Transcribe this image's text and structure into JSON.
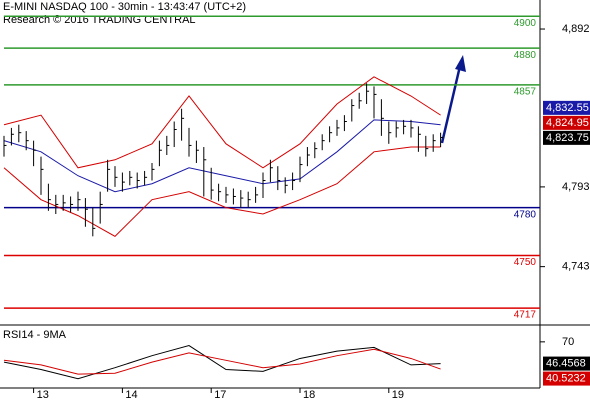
{
  "chart_data": [
    {
      "type": "hlc",
      "title": "E-MINI NASDAQ 100 - 30min - 13:43:47 (UTC+2)",
      "subtitle": "Research © 2016 TRADING CENTRAL",
      "categories": [
        null,
        null,
        null,
        null,
        "13",
        null,
        null,
        null,
        null,
        null,
        null,
        null,
        null,
        null,
        null,
        null,
        "14",
        null,
        null,
        null,
        null,
        null,
        null,
        null,
        null,
        null,
        null,
        null,
        "17",
        null,
        null,
        null,
        null,
        null,
        null,
        null,
        null,
        null,
        null,
        null,
        "18",
        null,
        null,
        null,
        null,
        null,
        null,
        null,
        null,
        null,
        null,
        null,
        "19",
        null,
        null,
        null,
        null,
        null,
        null,
        null
      ],
      "high": [
        4825,
        4830,
        4832,
        4828,
        4822,
        4812,
        4795,
        4788,
        4788,
        4787,
        4790,
        4786,
        4780,
        4790,
        4810,
        4806,
        4802,
        4803,
        4802,
        4803,
        4808,
        4822,
        4825,
        4834,
        4842,
        4830,
        4822,
        4818,
        4805,
        4795,
        4793,
        4792,
        4791,
        4790,
        4793,
        4802,
        4810,
        4806,
        4799,
        4802,
        4812,
        4818,
        4821,
        4826,
        4831,
        4835,
        4838,
        4848,
        4852,
        4858,
        4856,
        4848,
        4834,
        4834,
        4835,
        4835,
        4831,
        4825,
        4826,
        4827
      ],
      "low": [
        4812,
        4819,
        4821,
        4816,
        4806,
        4788,
        4778,
        4776,
        4778,
        4777,
        4778,
        4768,
        4762,
        4770,
        4790,
        4793,
        4790,
        4794,
        4792,
        4794,
        4797,
        4806,
        4813,
        4818,
        4822,
        4812,
        4808,
        4787,
        4785,
        4784,
        4783,
        4782,
        4780,
        4780,
        4783,
        4786,
        4796,
        4791,
        4789,
        4791,
        4796,
        4806,
        4811,
        4816,
        4821,
        4825,
        4828,
        4834,
        4842,
        4845,
        4836,
        4825,
        4820,
        4824,
        4826,
        4824,
        4815,
        4812,
        4815,
        4818
      ],
      "close": [
        4819,
        4826,
        4827,
        4822,
        4816,
        4804,
        4785,
        4782,
        4783,
        4782,
        4785,
        4779,
        4767,
        4782,
        4804,
        4799,
        4796,
        4799,
        4797,
        4799,
        4804,
        4816,
        4819,
        4829,
        4836,
        4819,
        4816,
        4810,
        4791,
        4790,
        4788,
        4787,
        4786,
        4785,
        4788,
        4797,
        4805,
        4797,
        4794,
        4797,
        4807,
        4813,
        4817,
        4822,
        4827,
        4830,
        4834,
        4844,
        4847,
        4853,
        4851,
        4836,
        4827,
        4830,
        4831,
        4830,
        4826,
        4817,
        4822,
        4824
      ],
      "series": [
        {
          "color": "#d40000",
          "x": [
            0,
            5,
            10,
            15,
            20,
            25,
            30,
            35,
            40,
            45,
            50,
            55,
            59
          ],
          "values": [
            4832,
            4838,
            4805,
            4810,
            4820,
            4850,
            4820,
            4805,
            4820,
            4845,
            4862,
            4850,
            4838
          ]
        },
        {
          "color": "#d40000",
          "x": [
            0,
            5,
            10,
            15,
            20,
            25,
            30,
            35,
            40,
            45,
            50,
            55,
            59
          ],
          "values": [
            4805,
            4785,
            4775,
            4762,
            4785,
            4790,
            4780,
            4776,
            4785,
            4795,
            4815,
            4818,
            4818
          ]
        },
        {
          "color": "#1a1aa8",
          "x": [
            0,
            5,
            10,
            15,
            20,
            25,
            30,
            35,
            40,
            45,
            50,
            55,
            59
          ],
          "values": [
            4822,
            4815,
            4800,
            4790,
            4795,
            4805,
            4800,
            4795,
            4798,
            4815,
            4835,
            4834,
            4832
          ]
        }
      ],
      "levels": [
        {
          "value": 4900,
          "color": "#2e9a2e"
        },
        {
          "value": 4880,
          "color": "#2e9a2e"
        },
        {
          "value": 4857,
          "color": "#2e9a2e"
        },
        {
          "value": 4780,
          "color": "#00008b"
        },
        {
          "value": 4750,
          "color": "#dd0000"
        },
        {
          "value": 4717,
          "color": "#dd0000"
        }
      ],
      "ylim": [
        4706.4,
        4910.2
      ],
      "yticks": [
        {
          "value": 4892,
          "label": "4,892"
        },
        {
          "value": 4793,
          "label": "4,793"
        },
        {
          "value": 4743,
          "label": "4,743"
        }
      ],
      "last_values": [
        {
          "value": 4823.75,
          "label": "4,823.75",
          "color": "#000000"
        },
        {
          "value": 4824.95,
          "label": "4,824.95",
          "color": "#cc0000"
        },
        {
          "value": 4832.55,
          "label": "4,832.55",
          "color": "#1a1aa8"
        }
      ]
    },
    {
      "type": "line",
      "title": "RSI14 - 9MA",
      "series": [
        {
          "color": "#000000",
          "x": [
            0,
            5,
            10,
            15,
            20,
            25,
            30,
            35,
            40,
            45,
            50,
            55,
            59
          ],
          "values": [
            48,
            40,
            30,
            42,
            55,
            66,
            40,
            38,
            52,
            60,
            64,
            45,
            46.4568
          ]
        },
        {
          "color": "#d40000",
          "x": [
            0,
            5,
            10,
            15,
            20,
            25,
            30,
            35,
            40,
            45,
            50,
            55,
            59
          ],
          "values": [
            50,
            45,
            35,
            36,
            48,
            58,
            50,
            42,
            46,
            55,
            62,
            52,
            40.5232
          ]
        }
      ],
      "ylim": [
        20,
        85
      ],
      "yticks": [
        70
      ]
    }
  ]
}
